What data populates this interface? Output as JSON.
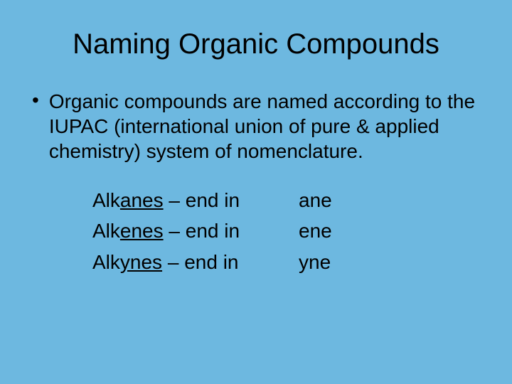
{
  "background_color": "#6db8e0",
  "text_color": "#000000",
  "title": "Naming Organic Compounds",
  "title_fontsize": 40,
  "body_fontsize": 28,
  "bullet": {
    "marker": "•",
    "text": "Organic compounds are named according to the IUPAC (international union of pure & applied chemistry) system of nomenclature."
  },
  "suffix_rows": [
    {
      "prefix": "Alk",
      "mid": "anes",
      "tail": " – end in",
      "ending": "ane"
    },
    {
      "prefix": "Alk",
      "mid": "enes",
      "tail": " – end in",
      "ending": "ene"
    },
    {
      "prefix": "Alk",
      "mid": "ynes",
      "tail": " – end in",
      "ending": "yne"
    }
  ]
}
